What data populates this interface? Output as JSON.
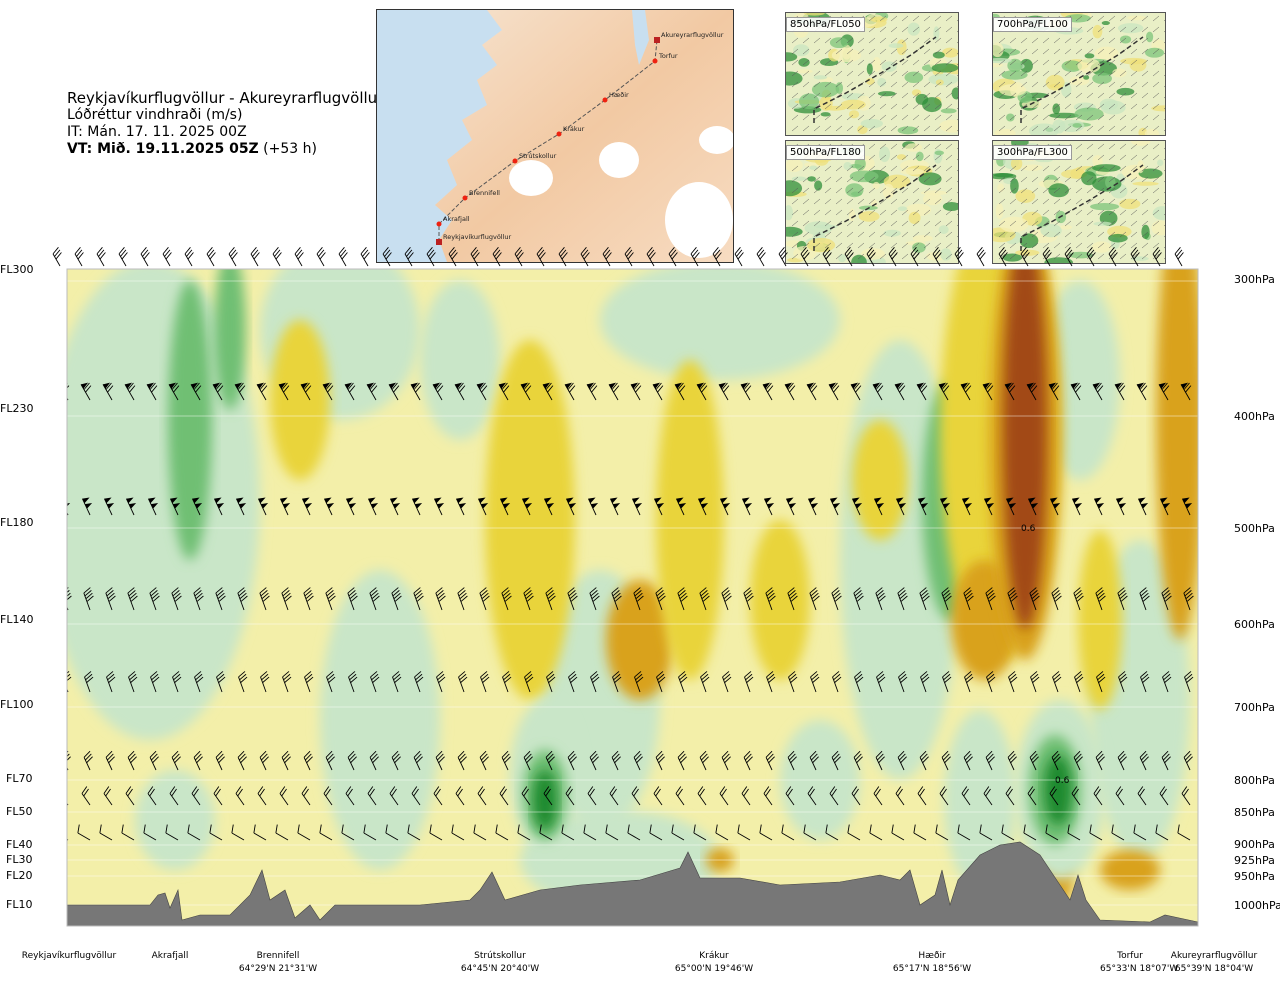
{
  "header": {
    "route": "Reykjavíkurflugvöllur - Akureyrarflugvöllur",
    "product": "Lóðréttur vindhraði (m/s)",
    "issue_time": "IT: Mán. 17. 11. 2025 00Z",
    "valid_prefix": "VT: Mið. 19.11.2025 05Z",
    "valid_suffix": "(+53 h)"
  },
  "map": {
    "waypoints": [
      "Reykjavíkurflugvöllur",
      "Akrafjall",
      "Brennifell",
      "Strútskollur",
      "Krákur",
      "Hæðir",
      "Torfur",
      "Akureyrarflugvöllur"
    ]
  },
  "mini_panels": [
    {
      "label": "850hPa/FL050"
    },
    {
      "label": "700hPa/FL100"
    },
    {
      "label": "500hPa/FL180"
    },
    {
      "label": "300hPa/FL300"
    }
  ],
  "chart_data": {
    "type": "heatmap",
    "title": "Lóðréttur vindhraði (m/s)",
    "y_left_labels": [
      "FL300",
      "FL230",
      "FL180",
      "FL140",
      "FL100",
      "FL70",
      "FL50",
      "FL40",
      "FL30",
      "FL20",
      "FL10"
    ],
    "y_right_labels": [
      "300hPa",
      "400hPa",
      "500hPa",
      "600hPa",
      "700hPa",
      "800hPa",
      "850hPa",
      "900hPa",
      "925hPa",
      "950hPa",
      "1000hPa"
    ],
    "pressure_levels_hPa": [
      300,
      400,
      500,
      600,
      700,
      800,
      850,
      900,
      925,
      950,
      1000
    ],
    "x_waypoints": [
      {
        "name": "Reykjavíkurflugvöllur",
        "coord": ""
      },
      {
        "name": "Akrafjall",
        "coord": ""
      },
      {
        "name": "Brennifell",
        "coord": "64°29'N 21°31'W"
      },
      {
        "name": "Strútskollur",
        "coord": "64°45'N 20°40'W"
      },
      {
        "name": "Krákur",
        "coord": "65°00'N 19°46'W"
      },
      {
        "name": "Hæðir",
        "coord": "65°17'N 18°56'W"
      },
      {
        "name": "Torfur",
        "coord": "65°33'N 18°07'W"
      },
      {
        "name": "Akureyrarflugvöllur",
        "coord": "65°39'N 18°04'W"
      }
    ],
    "annotations": [
      "0.6",
      "0.6"
    ],
    "colors": {
      "strong_down": "#1e8a2e",
      "down": "#6fbf73",
      "weak_down": "#c9e6c8",
      "neutral": "#f4f7e8",
      "weak_up": "#f5efa8",
      "up": "#e9d43a",
      "strong_up": "#d9a21c",
      "very_strong_up": "#a24a14",
      "terrain": "#7a7a7a"
    },
    "grid": true
  }
}
